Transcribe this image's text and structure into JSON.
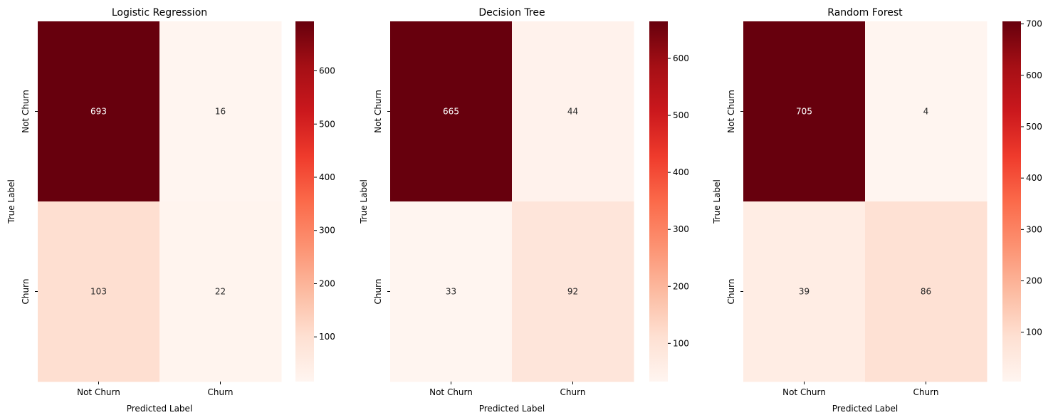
{
  "chart_data": [
    {
      "type": "heatmap",
      "title": "Logistic Regression",
      "xlabel": "Predicted Label",
      "ylabel": "True Label",
      "x_categories": [
        "Not Churn",
        "Churn"
      ],
      "y_categories": [
        "Not Churn",
        "Churn"
      ],
      "values": [
        [
          693,
          16
        ],
        [
          103,
          22
        ]
      ],
      "colormap": "Reds",
      "colorbar": {
        "min": 16,
        "max": 693,
        "ticks": [
          100,
          200,
          300,
          400,
          500,
          600
        ]
      }
    },
    {
      "type": "heatmap",
      "title": "Decision Tree",
      "xlabel": "Predicted Label",
      "ylabel": "True Label",
      "x_categories": [
        "Not Churn",
        "Churn"
      ],
      "y_categories": [
        "Not Churn",
        "Churn"
      ],
      "values": [
        [
          665,
          44
        ],
        [
          33,
          92
        ]
      ],
      "colormap": "Reds",
      "colorbar": {
        "min": 33,
        "max": 665,
        "ticks": [
          100,
          200,
          300,
          400,
          500,
          600
        ]
      }
    },
    {
      "type": "heatmap",
      "title": "Random Forest",
      "xlabel": "Predicted Label",
      "ylabel": "True Label",
      "x_categories": [
        "Not Churn",
        "Churn"
      ],
      "y_categories": [
        "Not Churn",
        "Churn"
      ],
      "values": [
        [
          705,
          4
        ],
        [
          39,
          86
        ]
      ],
      "colormap": "Reds",
      "colorbar": {
        "min": 4,
        "max": 705,
        "ticks": [
          100,
          200,
          300,
          400,
          500,
          600,
          700
        ]
      }
    }
  ]
}
